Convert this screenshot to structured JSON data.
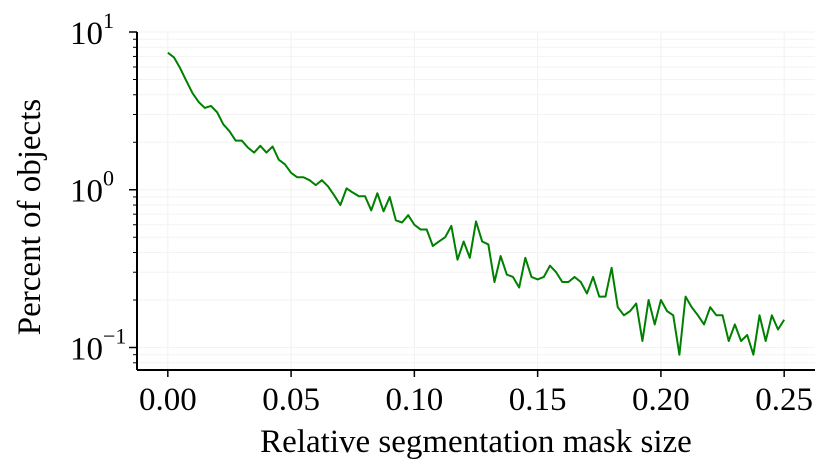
{
  "chart_data": {
    "type": "line",
    "title": "",
    "xlabel": "Relative segmentation mask size",
    "ylabel": "Percent of objects",
    "xscale": "linear",
    "yscale": "log",
    "xlim": [
      -0.0125,
      0.2625
    ],
    "ylim": [
      0.072,
      10
    ],
    "grid": true,
    "legend": "none",
    "line_color": "#008000",
    "x_ticks": [
      "0.00",
      "0.05",
      "0.10",
      "0.15",
      "0.20",
      "0.25"
    ],
    "y_ticks": [
      {
        "base": "10",
        "exp": "−1",
        "value": 0.1
      },
      {
        "base": "10",
        "exp": "0",
        "value": 1
      },
      {
        "base": "10",
        "exp": "1",
        "value": 10
      }
    ],
    "series": [
      {
        "x": [
          0.0,
          0.0025,
          0.005,
          0.0075,
          0.01,
          0.0125,
          0.015,
          0.0175,
          0.02,
          0.0225,
          0.025,
          0.0275,
          0.03,
          0.0325,
          0.035,
          0.0375,
          0.04,
          0.0425,
          0.045,
          0.0475,
          0.05,
          0.0525,
          0.055,
          0.0575,
          0.06,
          0.0625,
          0.065,
          0.0675,
          0.07,
          0.0725,
          0.075,
          0.0775,
          0.08,
          0.0825,
          0.085,
          0.0875,
          0.09,
          0.0925,
          0.095,
          0.0975,
          0.1,
          0.1025,
          0.105,
          0.1075,
          0.11,
          0.1125,
          0.115,
          0.1175,
          0.12,
          0.1225,
          0.125,
          0.1275,
          0.13,
          0.1325,
          0.135,
          0.1375,
          0.14,
          0.1425,
          0.145,
          0.1475,
          0.15,
          0.1525,
          0.155,
          0.1575,
          0.16,
          0.1625,
          0.165,
          0.1675,
          0.17,
          0.1725,
          0.175,
          0.1775,
          0.18,
          0.1825,
          0.185,
          0.1875,
          0.19,
          0.1925,
          0.195,
          0.1975,
          0.2,
          0.2025,
          0.205,
          0.2075,
          0.21,
          0.2125,
          0.215,
          0.2175,
          0.22,
          0.2225,
          0.225,
          0.2275,
          0.23,
          0.2325,
          0.235,
          0.2375,
          0.24,
          0.2425,
          0.245,
          0.2475,
          0.25
        ],
        "y": [
          7.4,
          6.9,
          5.9,
          4.9,
          4.1,
          3.6,
          3.3,
          3.4,
          3.1,
          2.6,
          2.35,
          2.05,
          2.05,
          1.85,
          1.72,
          1.9,
          1.72,
          1.88,
          1.55,
          1.45,
          1.28,
          1.2,
          1.2,
          1.15,
          1.07,
          1.15,
          1.05,
          0.92,
          0.8,
          1.02,
          0.96,
          0.91,
          0.91,
          0.74,
          0.95,
          0.73,
          0.9,
          0.64,
          0.62,
          0.69,
          0.6,
          0.56,
          0.56,
          0.44,
          0.47,
          0.5,
          0.59,
          0.36,
          0.47,
          0.37,
          0.63,
          0.47,
          0.45,
          0.26,
          0.38,
          0.29,
          0.28,
          0.24,
          0.37,
          0.28,
          0.27,
          0.28,
          0.33,
          0.3,
          0.26,
          0.26,
          0.28,
          0.26,
          0.22,
          0.28,
          0.21,
          0.21,
          0.32,
          0.18,
          0.16,
          0.17,
          0.19,
          0.11,
          0.2,
          0.14,
          0.2,
          0.17,
          0.16,
          0.09,
          0.21,
          0.18,
          0.16,
          0.14,
          0.18,
          0.16,
          0.16,
          0.11,
          0.14,
          0.11,
          0.12,
          0.09,
          0.16,
          0.11,
          0.16,
          0.13,
          0.15
        ]
      }
    ]
  }
}
